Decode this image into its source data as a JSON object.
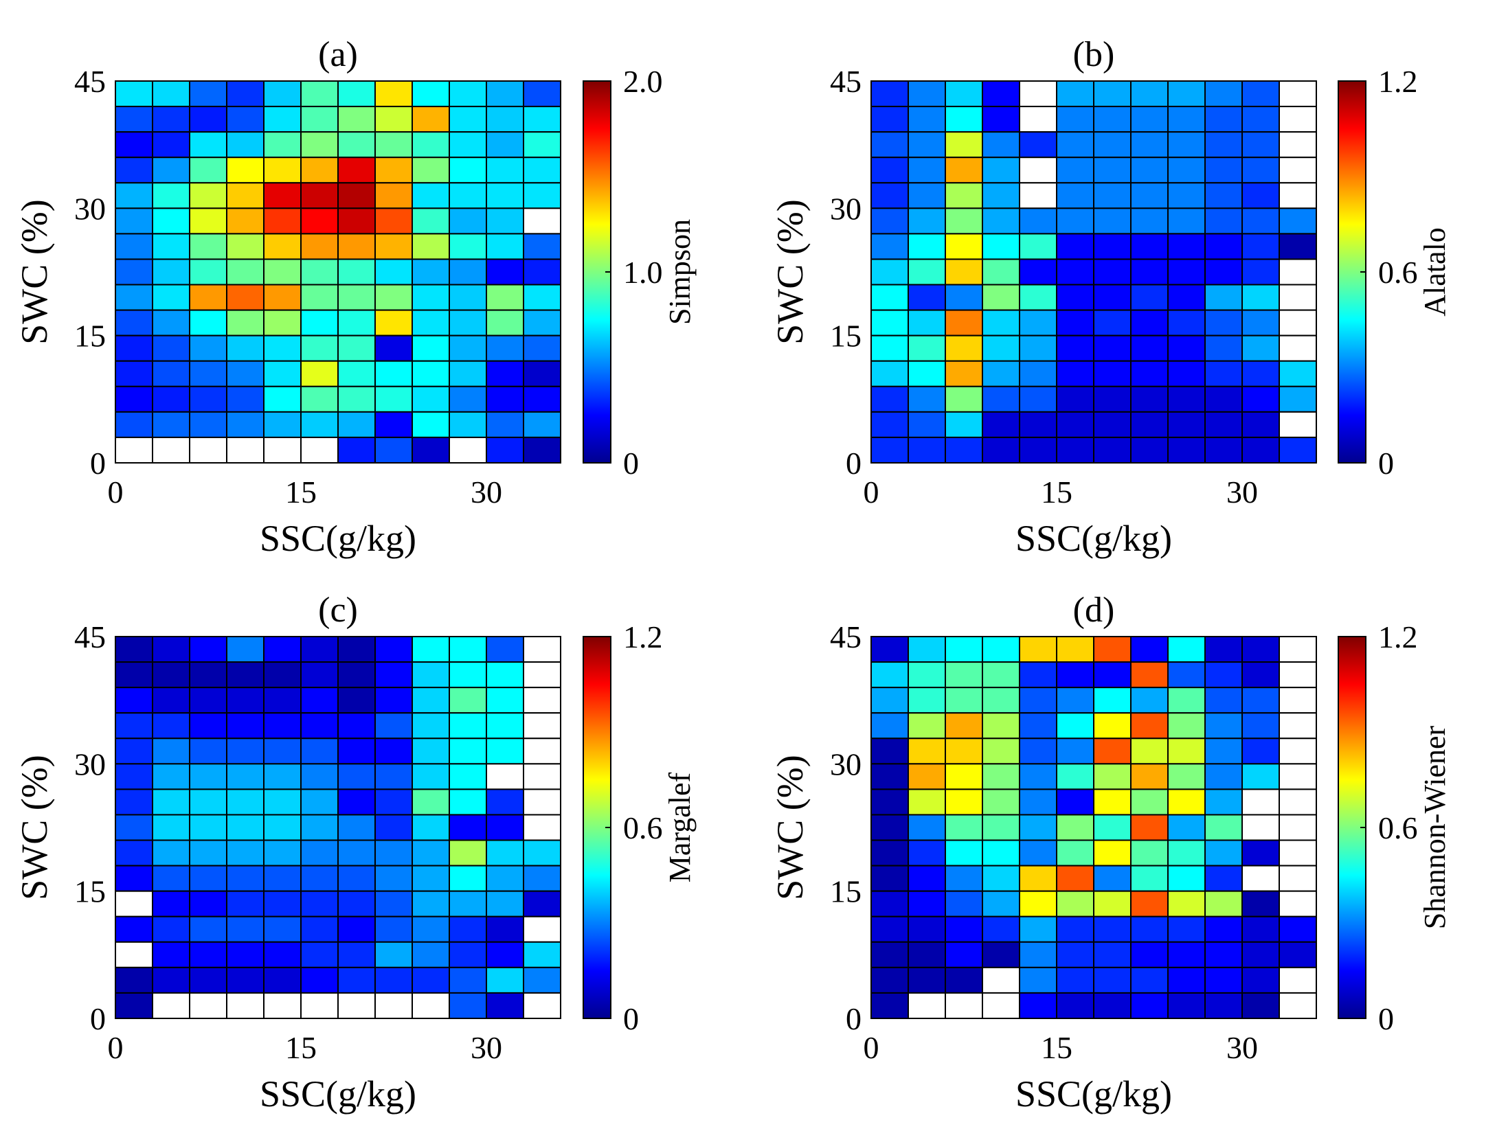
{
  "chart_data": [
    {
      "type": "heatmap",
      "title": "(a)",
      "xlabel": "SSC(g/kg)",
      "ylabel": "SWC (%)",
      "xlim": [
        0,
        36
      ],
      "ylim": [
        0,
        45
      ],
      "x_ticks": [
        "0",
        "15",
        "30"
      ],
      "y_ticks": [
        "0",
        "15",
        "30",
        "45"
      ],
      "colorbar": {
        "label": "Simpson",
        "range": [
          0,
          2.0
        ],
        "ticks": [
          "0",
          "1.0",
          "2.0"
        ]
      },
      "colormap": "jet",
      "empty_value": null,
      "rows_top_to_bottom": [
        [
          0.7,
          0.68,
          0.45,
          0.35,
          0.65,
          0.9,
          0.8,
          1.3,
          0.75,
          0.7,
          0.6,
          0.4
        ],
        [
          0.4,
          0.35,
          0.3,
          0.4,
          0.7,
          0.9,
          1.0,
          1.15,
          1.4,
          0.7,
          0.65,
          0.7
        ],
        [
          0.25,
          0.3,
          0.7,
          0.65,
          0.9,
          1.0,
          0.9,
          0.95,
          0.85,
          0.7,
          0.6,
          0.8
        ],
        [
          0.35,
          0.55,
          0.9,
          1.25,
          1.3,
          1.4,
          1.8,
          1.4,
          1.0,
          0.75,
          0.7,
          0.7
        ],
        [
          0.6,
          0.8,
          1.15,
          1.35,
          1.8,
          1.85,
          1.9,
          1.45,
          0.7,
          0.7,
          0.7,
          0.7
        ],
        [
          0.55,
          0.75,
          1.2,
          1.4,
          1.65,
          1.75,
          1.85,
          1.6,
          0.85,
          0.6,
          0.65,
          null
        ],
        [
          0.5,
          0.7,
          0.95,
          1.1,
          1.35,
          1.45,
          1.45,
          1.4,
          1.1,
          0.8,
          0.7,
          0.45
        ],
        [
          0.45,
          0.65,
          0.85,
          0.95,
          1.0,
          0.9,
          0.85,
          0.7,
          0.6,
          0.55,
          0.25,
          0.3
        ],
        [
          0.55,
          0.7,
          1.45,
          1.55,
          1.45,
          0.95,
          0.95,
          1.0,
          0.7,
          0.65,
          1.0,
          0.7
        ],
        [
          0.4,
          0.55,
          0.75,
          1.0,
          1.05,
          0.75,
          0.8,
          1.3,
          0.7,
          0.65,
          0.95,
          0.6
        ],
        [
          0.3,
          0.4,
          0.55,
          0.65,
          0.7,
          0.85,
          0.85,
          0.2,
          0.75,
          0.6,
          0.5,
          0.45
        ],
        [
          0.3,
          0.4,
          0.45,
          0.5,
          0.7,
          1.2,
          0.8,
          0.75,
          0.75,
          0.65,
          0.25,
          0.15
        ],
        [
          0.25,
          0.3,
          0.35,
          0.4,
          0.75,
          0.9,
          0.85,
          0.8,
          0.7,
          0.5,
          0.25,
          0.25
        ],
        [
          0.4,
          0.45,
          0.45,
          0.5,
          0.6,
          0.65,
          0.6,
          0.25,
          0.75,
          0.65,
          0.45,
          0.55
        ],
        [
          null,
          null,
          null,
          null,
          null,
          null,
          0.3,
          0.4,
          0.15,
          null,
          0.3,
          0.1
        ]
      ]
    },
    {
      "type": "heatmap",
      "title": "(b)",
      "xlabel": "SSC(g/kg)",
      "ylabel": "SWC (%)",
      "xlim": [
        0,
        36
      ],
      "ylim": [
        0,
        45
      ],
      "x_ticks": [
        "0",
        "15",
        "30"
      ],
      "y_ticks": [
        "0",
        "15",
        "30",
        "45"
      ],
      "colorbar": {
        "label": "Alatalo",
        "range": [
          0,
          1.2
        ],
        "ticks": [
          "0",
          "0.6",
          "1.2"
        ]
      },
      "colormap": "jet",
      "empty_value": null,
      "rows_top_to_bottom": [
        [
          0.2,
          0.3,
          0.4,
          0.15,
          null,
          0.35,
          0.35,
          0.35,
          0.35,
          0.3,
          0.25,
          null
        ],
        [
          0.2,
          0.3,
          0.45,
          0.15,
          null,
          0.3,
          0.3,
          0.3,
          0.3,
          0.25,
          0.25,
          null
        ],
        [
          0.25,
          0.3,
          0.7,
          0.3,
          0.2,
          0.3,
          0.3,
          0.3,
          0.3,
          0.25,
          0.25,
          null
        ],
        [
          0.2,
          0.3,
          0.85,
          0.35,
          null,
          0.3,
          0.3,
          0.3,
          0.3,
          0.25,
          0.25,
          null
        ],
        [
          0.2,
          0.3,
          0.65,
          0.35,
          null,
          0.3,
          0.3,
          0.3,
          0.3,
          0.25,
          0.2,
          null
        ],
        [
          0.25,
          0.35,
          0.6,
          0.35,
          0.3,
          0.3,
          0.3,
          0.3,
          0.3,
          0.25,
          0.25,
          0.3
        ],
        [
          0.3,
          0.45,
          0.75,
          0.45,
          0.5,
          0.15,
          0.15,
          0.15,
          0.15,
          0.15,
          0.2,
          0.05
        ],
        [
          0.4,
          0.5,
          0.8,
          0.55,
          0.15,
          0.15,
          0.15,
          0.15,
          0.15,
          0.15,
          0.2,
          null
        ],
        [
          0.45,
          0.2,
          0.3,
          0.6,
          0.5,
          0.15,
          0.15,
          0.2,
          0.15,
          0.35,
          0.4,
          null
        ],
        [
          0.45,
          0.4,
          0.9,
          0.4,
          0.35,
          0.15,
          0.2,
          0.15,
          0.2,
          0.25,
          0.3,
          null
        ],
        [
          0.45,
          0.5,
          0.8,
          0.4,
          0.35,
          0.15,
          0.15,
          0.15,
          0.15,
          0.25,
          0.35,
          null
        ],
        [
          0.4,
          0.45,
          0.85,
          0.35,
          0.3,
          0.15,
          0.15,
          0.15,
          0.15,
          0.2,
          0.2,
          0.4
        ],
        [
          0.2,
          0.3,
          0.6,
          0.25,
          0.25,
          0.1,
          0.1,
          0.1,
          0.1,
          0.1,
          0.15,
          0.35
        ],
        [
          0.2,
          0.25,
          0.4,
          0.1,
          0.1,
          0.1,
          0.1,
          0.1,
          0.1,
          0.1,
          0.1,
          null
        ],
        [
          0.2,
          0.2,
          0.2,
          0.1,
          0.1,
          0.1,
          0.1,
          0.1,
          0.1,
          0.1,
          0.1,
          0.2
        ]
      ]
    },
    {
      "type": "heatmap",
      "title": "(c)",
      "xlabel": "SSC(g/kg)",
      "ylabel": "SWC (%)",
      "xlim": [
        0,
        36
      ],
      "ylim": [
        0,
        45
      ],
      "x_ticks": [
        "0",
        "15",
        "30"
      ],
      "y_ticks": [
        "0",
        "15",
        "30",
        "45"
      ],
      "colorbar": {
        "label": "Margalef",
        "range": [
          0,
          1.2
        ],
        "ticks": [
          "0",
          "0.6",
          "1.2"
        ]
      },
      "colormap": "jet",
      "empty_value": null,
      "rows_top_to_bottom": [
        [
          0.05,
          0.1,
          0.15,
          0.3,
          0.15,
          0.1,
          0.05,
          0.15,
          0.45,
          0.45,
          0.25,
          null
        ],
        [
          0.05,
          0.05,
          0.05,
          0.05,
          0.05,
          0.1,
          0.05,
          0.15,
          0.4,
          0.45,
          0.45,
          null
        ],
        [
          0.15,
          0.1,
          0.1,
          0.1,
          0.1,
          0.15,
          0.05,
          0.15,
          0.4,
          0.55,
          0.45,
          null
        ],
        [
          0.2,
          0.2,
          0.15,
          0.15,
          0.15,
          0.15,
          0.15,
          0.25,
          0.4,
          0.45,
          0.45,
          null
        ],
        [
          0.2,
          0.3,
          0.25,
          0.25,
          0.25,
          0.25,
          0.15,
          0.15,
          0.4,
          0.45,
          0.45,
          null
        ],
        [
          0.2,
          0.35,
          0.35,
          0.35,
          0.35,
          0.3,
          0.25,
          0.25,
          0.4,
          0.45,
          null,
          null
        ],
        [
          0.2,
          0.4,
          0.4,
          0.4,
          0.4,
          0.35,
          0.15,
          0.2,
          0.55,
          0.45,
          0.2,
          null
        ],
        [
          0.25,
          0.4,
          0.4,
          0.4,
          0.4,
          0.35,
          0.3,
          0.2,
          0.4,
          0.15,
          0.15,
          null
        ],
        [
          0.2,
          0.35,
          0.35,
          0.35,
          0.35,
          0.3,
          0.3,
          0.3,
          0.35,
          0.65,
          0.4,
          0.4
        ],
        [
          0.15,
          0.25,
          0.25,
          0.25,
          0.25,
          0.25,
          0.25,
          0.3,
          0.35,
          0.45,
          0.35,
          0.3
        ],
        [
          null,
          0.15,
          0.15,
          0.2,
          0.2,
          0.2,
          0.2,
          0.25,
          0.35,
          0.35,
          0.35,
          0.1
        ],
        [
          0.15,
          0.2,
          0.25,
          0.25,
          0.25,
          0.2,
          0.15,
          0.25,
          0.3,
          0.2,
          0.1,
          null
        ],
        [
          null,
          0.15,
          0.15,
          0.15,
          0.15,
          0.2,
          0.2,
          0.35,
          0.3,
          0.2,
          0.15,
          0.4
        ],
        [
          0.05,
          0.1,
          0.1,
          0.1,
          0.1,
          0.15,
          0.2,
          0.2,
          0.2,
          0.25,
          0.4,
          0.3
        ],
        [
          0.05,
          null,
          null,
          null,
          null,
          null,
          null,
          null,
          null,
          0.25,
          0.1,
          null
        ]
      ]
    },
    {
      "type": "heatmap",
      "title": "(d)",
      "xlabel": "SSC(g/kg)",
      "ylabel": "SWC (%)",
      "xlim": [
        0,
        36
      ],
      "ylim": [
        0,
        45
      ],
      "x_ticks": [
        "0",
        "15",
        "30"
      ],
      "y_ticks": [
        "0",
        "15",
        "30",
        "45"
      ],
      "colorbar": {
        "label": "Shannon-Wiener",
        "range": [
          0,
          1.2
        ],
        "ticks": [
          "0",
          "0.6",
          "1.2"
        ]
      },
      "colormap": "jet",
      "empty_value": null,
      "rows_top_to_bottom": [
        [
          0.1,
          0.4,
          0.45,
          0.45,
          0.8,
          0.8,
          0.95,
          0.15,
          0.45,
          0.1,
          0.1,
          null
        ],
        [
          0.4,
          0.5,
          0.55,
          0.55,
          0.2,
          0.15,
          0.15,
          0.95,
          0.25,
          0.2,
          0.1,
          null
        ],
        [
          0.35,
          0.5,
          0.55,
          0.55,
          0.25,
          0.3,
          0.45,
          0.35,
          0.55,
          0.25,
          0.25,
          null
        ],
        [
          0.3,
          0.65,
          0.85,
          0.65,
          0.25,
          0.45,
          0.75,
          0.95,
          0.6,
          0.3,
          0.25,
          null
        ],
        [
          0.05,
          0.8,
          0.8,
          0.65,
          0.25,
          0.3,
          0.95,
          0.7,
          0.7,
          0.3,
          0.2,
          null
        ],
        [
          0.05,
          0.85,
          0.75,
          0.6,
          0.3,
          0.5,
          0.65,
          0.85,
          0.6,
          0.3,
          0.4,
          null
        ],
        [
          0.05,
          0.7,
          0.75,
          0.6,
          0.3,
          0.15,
          0.75,
          0.6,
          0.75,
          0.35,
          null,
          null
        ],
        [
          0.05,
          0.3,
          0.55,
          0.55,
          0.35,
          0.6,
          0.5,
          0.95,
          0.35,
          0.55,
          null,
          null
        ],
        [
          0.05,
          0.2,
          0.45,
          0.45,
          0.3,
          0.55,
          0.75,
          0.55,
          0.5,
          0.35,
          0.1,
          null
        ],
        [
          0.05,
          0.15,
          0.3,
          0.4,
          0.8,
          0.95,
          0.3,
          0.5,
          0.45,
          0.2,
          null,
          null
        ],
        [
          0.1,
          0.15,
          0.25,
          0.35,
          0.75,
          0.65,
          0.7,
          0.95,
          0.7,
          0.65,
          0.05,
          null
        ],
        [
          0.1,
          0.1,
          0.15,
          0.2,
          0.35,
          0.2,
          0.2,
          0.2,
          0.2,
          0.15,
          0.1,
          0.15
        ],
        [
          0.05,
          0.05,
          0.15,
          0.05,
          0.3,
          0.2,
          0.2,
          0.15,
          0.15,
          0.15,
          0.1,
          0.1
        ],
        [
          0.05,
          0.05,
          0.05,
          null,
          0.3,
          0.2,
          0.2,
          0.2,
          0.15,
          0.15,
          0.1,
          null
        ],
        [
          0.05,
          null,
          null,
          null,
          0.15,
          0.1,
          0.1,
          0.15,
          0.1,
          0.1,
          0.05,
          null
        ]
      ]
    }
  ]
}
